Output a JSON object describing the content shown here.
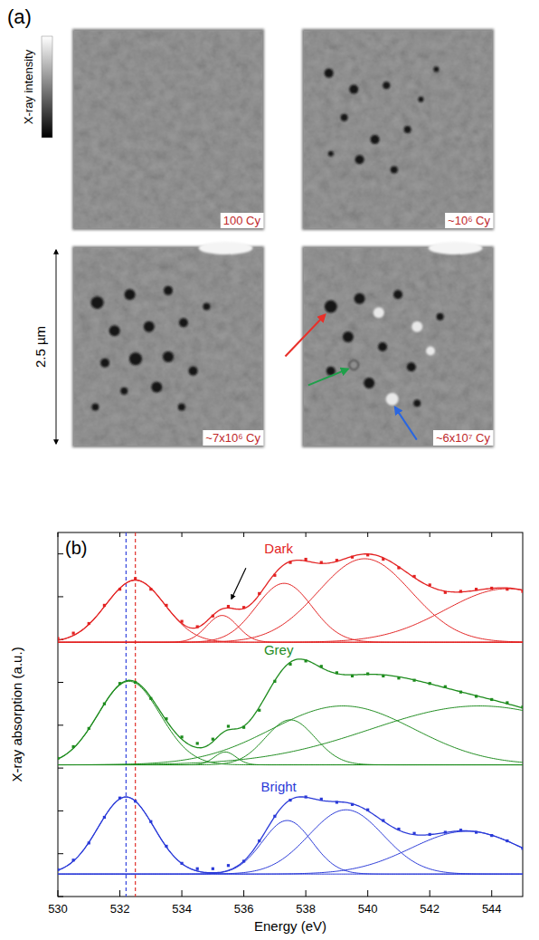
{
  "figure": {
    "panel_a": {
      "label": "(a)",
      "colorbar_label": "X-ray intensity",
      "scale_bar": "2.5 µm",
      "images": [
        {
          "cycles": "100 Cy"
        },
        {
          "cycles": "~10⁶ Cy"
        },
        {
          "cycles": "~7x10⁶ Cy"
        },
        {
          "cycles": "~6x10⁷ Cy"
        }
      ]
    }
  },
  "chart_data": {
    "type": "scatter",
    "panel_label": "(b)",
    "x_label": "Energy (eV)",
    "y_label": "X-ray absorption (a.u.)",
    "xlim": [
      530,
      545
    ],
    "ylim": [
      0,
      3.4
    ],
    "xticks": [
      530,
      532,
      534,
      536,
      538,
      540,
      542,
      544
    ],
    "yticks": [
      0,
      0.4,
      0.8,
      1.2,
      1.6,
      2,
      2.4,
      2.8,
      3.2
    ],
    "tick_labels": "x",
    "grid": false,
    "marker": "square",
    "x": [
      530,
      530.5,
      531,
      531.5,
      532,
      532.5,
      533,
      533.5,
      534,
      534.5,
      535,
      535.5,
      536,
      536.5,
      537,
      537.5,
      538,
      538.5,
      539,
      539.5,
      540,
      540.5,
      541,
      541.5,
      542,
      542.5,
      543,
      543.5,
      544,
      544.5,
      545
    ],
    "series": [
      {
        "name": "Dark",
        "color": "#e32222",
        "values": [
          2.41,
          2.46,
          2.55,
          2.72,
          2.87,
          2.97,
          2.87,
          2.72,
          2.57,
          2.52,
          2.62,
          2.71,
          2.7,
          2.83,
          3.0,
          3.12,
          3.15,
          3.12,
          3.14,
          3.17,
          3.19,
          3.15,
          3.07,
          2.99,
          2.91,
          2.84,
          2.85,
          2.87,
          2.88,
          2.87,
          2.85
        ],
        "baseline": 2.375,
        "components": [
          {
            "center": 532.5,
            "amplitude": 0.58,
            "width": 0.95
          },
          {
            "center": 535.3,
            "amplitude": 0.25,
            "width": 0.5
          },
          {
            "center": 537.3,
            "amplitude": 0.55,
            "width": 0.9
          },
          {
            "center": 539.9,
            "amplitude": 0.78,
            "width": 1.5
          },
          {
            "center": 544.5,
            "amplitude": 0.5,
            "width": 2.0
          }
        ]
      },
      {
        "name": "Grey",
        "color": "#1e8c1e",
        "values": [
          1.29,
          1.4,
          1.57,
          1.8,
          1.99,
          2.0,
          1.85,
          1.66,
          1.49,
          1.43,
          1.47,
          1.59,
          1.58,
          1.74,
          2.01,
          2.17,
          2.2,
          2.15,
          2.09,
          2.06,
          2.08,
          2.06,
          2.04,
          2.02,
          1.99,
          1.96,
          1.91,
          1.87,
          1.84,
          1.81,
          1.77
        ],
        "baseline": 1.23,
        "components": [
          {
            "center": 532.3,
            "amplitude": 0.78,
            "width": 1.0
          },
          {
            "center": 535.4,
            "amplitude": 0.12,
            "width": 0.35
          },
          {
            "center": 537.5,
            "amplitude": 0.42,
            "width": 0.8
          },
          {
            "center": 539.2,
            "amplitude": 0.55,
            "width": 2.3
          },
          {
            "center": 543.6,
            "amplitude": 0.55,
            "width": 3.5
          }
        ]
      },
      {
        "name": "Bright",
        "color": "#2a3ad8",
        "values": [
          0.25,
          0.34,
          0.5,
          0.74,
          0.92,
          0.89,
          0.7,
          0.47,
          0.31,
          0.26,
          0.26,
          0.29,
          0.33,
          0.52,
          0.75,
          0.9,
          0.93,
          0.91,
          0.88,
          0.86,
          0.81,
          0.71,
          0.63,
          0.59,
          0.58,
          0.6,
          0.62,
          0.6,
          0.57,
          0.52,
          0.45
        ],
        "baseline": 0.21,
        "components": [
          {
            "center": 532.2,
            "amplitude": 0.72,
            "width": 0.9
          },
          {
            "center": 537.4,
            "amplitude": 0.5,
            "width": 0.8
          },
          {
            "center": 539.3,
            "amplitude": 0.6,
            "width": 1.2
          },
          {
            "center": 543.2,
            "amplitude": 0.4,
            "width": 1.8
          }
        ]
      }
    ],
    "reference_lines": [
      {
        "x": 532.2,
        "color": "#3344dd",
        "line_style": "dashed"
      },
      {
        "x": 532.5,
        "color": "#e0302a",
        "line_style": "dashed"
      }
    ],
    "annotations": [
      {
        "x": 535.6,
        "y": 2.78
      }
    ]
  }
}
